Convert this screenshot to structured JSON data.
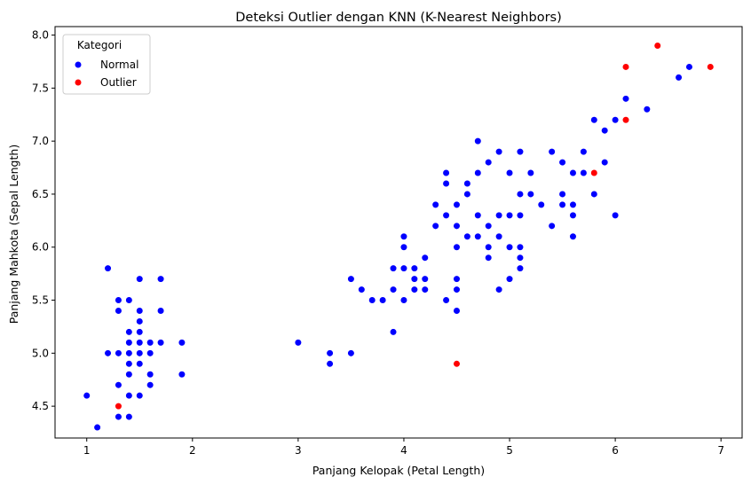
{
  "chart_data": {
    "type": "scatter",
    "title": "Deteksi Outlier dengan KNN (K-Nearest Neighbors)",
    "xlabel": "Panjang Kelopak (Petal Length)",
    "ylabel": "Panjang Mahkota (Sepal Length)",
    "xlim": [
      0.7,
      7.2
    ],
    "ylim": [
      4.2,
      8.08
    ],
    "xticks": [
      1,
      2,
      3,
      4,
      5,
      6,
      7
    ],
    "yticks": [
      4.5,
      5.0,
      5.5,
      6.0,
      6.5,
      7.0,
      7.5,
      8.0
    ],
    "xtick_labels": [
      "1",
      "2",
      "3",
      "4",
      "5",
      "6",
      "7"
    ],
    "ytick_labels": [
      "4.5",
      "5.0",
      "5.5",
      "6.0",
      "6.5",
      "7.0",
      "7.5",
      "8.0"
    ],
    "grid": false,
    "legend": {
      "title": "Kategori",
      "position": "top-left",
      "entries": [
        {
          "label": "Normal",
          "color": "#0000ff"
        },
        {
          "label": "Outlier",
          "color": "#ff0000"
        }
      ]
    },
    "series": [
      {
        "name": "Normal",
        "color": "#0000ff",
        "points": [
          [
            1.0,
            4.6
          ],
          [
            1.1,
            4.3
          ],
          [
            1.2,
            5.8
          ],
          [
            1.2,
            5.0
          ],
          [
            1.3,
            5.5
          ],
          [
            1.3,
            5.4
          ],
          [
            1.3,
            5.0
          ],
          [
            1.3,
            4.7
          ],
          [
            1.3,
            4.4
          ],
          [
            1.4,
            5.5
          ],
          [
            1.4,
            5.2
          ],
          [
            1.4,
            5.1
          ],
          [
            1.4,
            5.0
          ],
          [
            1.4,
            4.9
          ],
          [
            1.4,
            4.8
          ],
          [
            1.4,
            4.6
          ],
          [
            1.4,
            4.4
          ],
          [
            1.5,
            5.7
          ],
          [
            1.5,
            5.4
          ],
          [
            1.5,
            5.3
          ],
          [
            1.5,
            5.2
          ],
          [
            1.5,
            5.1
          ],
          [
            1.5,
            5.0
          ],
          [
            1.5,
            4.9
          ],
          [
            1.5,
            4.6
          ],
          [
            1.6,
            5.1
          ],
          [
            1.6,
            5.0
          ],
          [
            1.6,
            4.8
          ],
          [
            1.6,
            4.7
          ],
          [
            1.7,
            5.7
          ],
          [
            1.7,
            5.4
          ],
          [
            1.7,
            5.1
          ],
          [
            1.9,
            5.1
          ],
          [
            1.9,
            4.8
          ],
          [
            3.0,
            5.1
          ],
          [
            3.3,
            5.0
          ],
          [
            3.3,
            4.9
          ],
          [
            3.5,
            5.7
          ],
          [
            3.5,
            5.0
          ],
          [
            3.6,
            5.6
          ],
          [
            3.7,
            5.5
          ],
          [
            3.8,
            5.5
          ],
          [
            3.9,
            5.8
          ],
          [
            3.9,
            5.6
          ],
          [
            3.9,
            5.2
          ],
          [
            4.0,
            6.1
          ],
          [
            4.0,
            6.0
          ],
          [
            4.0,
            5.8
          ],
          [
            4.0,
            5.5
          ],
          [
            4.1,
            5.8
          ],
          [
            4.1,
            5.7
          ],
          [
            4.1,
            5.6
          ],
          [
            4.2,
            5.9
          ],
          [
            4.2,
            5.7
          ],
          [
            4.2,
            5.6
          ],
          [
            4.3,
            6.4
          ],
          [
            4.3,
            6.2
          ],
          [
            4.4,
            6.7
          ],
          [
            4.4,
            6.6
          ],
          [
            4.4,
            6.3
          ],
          [
            4.4,
            5.5
          ],
          [
            4.5,
            6.4
          ],
          [
            4.5,
            6.2
          ],
          [
            4.5,
            6.0
          ],
          [
            4.5,
            5.7
          ],
          [
            4.5,
            5.6
          ],
          [
            4.5,
            5.4
          ],
          [
            4.6,
            6.6
          ],
          [
            4.6,
            6.5
          ],
          [
            4.6,
            6.1
          ],
          [
            4.7,
            7.0
          ],
          [
            4.7,
            6.7
          ],
          [
            4.7,
            6.3
          ],
          [
            4.7,
            6.1
          ],
          [
            4.8,
            6.8
          ],
          [
            4.8,
            6.2
          ],
          [
            4.8,
            6.0
          ],
          [
            4.8,
            5.9
          ],
          [
            4.9,
            6.9
          ],
          [
            4.9,
            6.3
          ],
          [
            4.9,
            6.1
          ],
          [
            4.9,
            5.6
          ],
          [
            5.0,
            6.7
          ],
          [
            5.0,
            6.3
          ],
          [
            5.0,
            6.0
          ],
          [
            5.0,
            5.7
          ],
          [
            5.1,
            6.9
          ],
          [
            5.1,
            6.5
          ],
          [
            5.1,
            6.3
          ],
          [
            5.1,
            6.0
          ],
          [
            5.1,
            5.9
          ],
          [
            5.1,
            5.8
          ],
          [
            5.2,
            6.7
          ],
          [
            5.2,
            6.5
          ],
          [
            5.3,
            6.4
          ],
          [
            5.4,
            6.9
          ],
          [
            5.4,
            6.2
          ],
          [
            5.5,
            6.8
          ],
          [
            5.5,
            6.5
          ],
          [
            5.5,
            6.4
          ],
          [
            5.6,
            6.7
          ],
          [
            5.6,
            6.4
          ],
          [
            5.6,
            6.3
          ],
          [
            5.6,
            6.1
          ],
          [
            5.7,
            6.9
          ],
          [
            5.7,
            6.7
          ],
          [
            5.8,
            7.2
          ],
          [
            5.8,
            6.5
          ],
          [
            5.9,
            7.1
          ],
          [
            5.9,
            6.8
          ],
          [
            6.0,
            7.2
          ],
          [
            6.0,
            6.3
          ],
          [
            6.1,
            7.4
          ],
          [
            6.3,
            7.3
          ],
          [
            6.6,
            7.6
          ],
          [
            6.7,
            7.7
          ]
        ]
      },
      {
        "name": "Outlier",
        "color": "#ff0000",
        "points": [
          [
            1.3,
            4.5
          ],
          [
            4.5,
            4.9
          ],
          [
            5.8,
            6.7
          ],
          [
            6.1,
            7.7
          ],
          [
            6.1,
            7.2
          ],
          [
            6.4,
            7.9
          ],
          [
            6.9,
            7.7
          ]
        ]
      }
    ]
  }
}
